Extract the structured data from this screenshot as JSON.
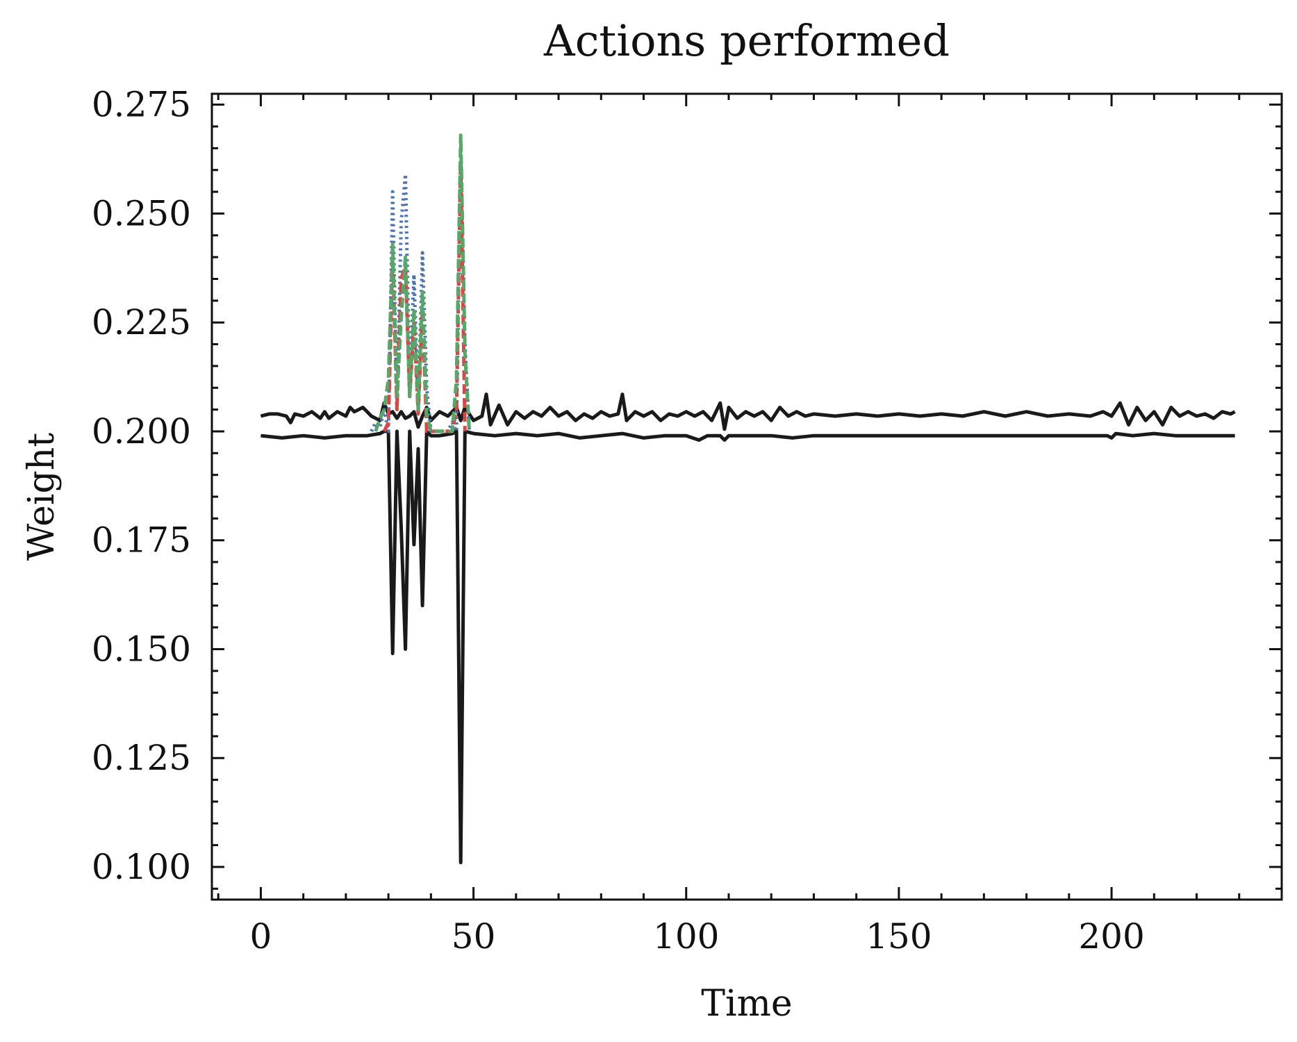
{
  "chart_data": {
    "type": "line",
    "title": "Actions performed",
    "xlabel": "Time",
    "ylabel": "Weight",
    "xlim": [
      -11.5,
      240
    ],
    "ylim": [
      0.0925,
      0.2775
    ],
    "xticks": [
      0,
      50,
      100,
      150,
      200
    ],
    "xtick_labels": [
      "0",
      "50",
      "100",
      "150",
      "200"
    ],
    "yticks": [
      0.1,
      0.125,
      0.15,
      0.175,
      0.2,
      0.225,
      0.25,
      0.275
    ],
    "ytick_labels": [
      "0.100",
      "0.125",
      "0.150",
      "0.175",
      "0.200",
      "0.225",
      "0.250",
      "0.275"
    ],
    "grid": false,
    "legend": "none",
    "series": [
      {
        "color": "#1a1a1a",
        "dash": "solid",
        "x": [
          0,
          2,
          4,
          6,
          7,
          8,
          10,
          12,
          14,
          15,
          16,
          18,
          20,
          21,
          22,
          24,
          26,
          28,
          29,
          30,
          31,
          32,
          33,
          34,
          35,
          36,
          37,
          38,
          39,
          40,
          42,
          44,
          46,
          47,
          48,
          50,
          52,
          53,
          54,
          56,
          58,
          60,
          62,
          64,
          66,
          68,
          70,
          72,
          74,
          76,
          78,
          80,
          82,
          84,
          85,
          86,
          88,
          90,
          92,
          94,
          96,
          98,
          100,
          102,
          104,
          106,
          108,
          109,
          110,
          112,
          114,
          116,
          118,
          120,
          122,
          124,
          126,
          128,
          130,
          135,
          140,
          145,
          150,
          155,
          160,
          165,
          170,
          175,
          180,
          185,
          190,
          195,
          198,
          200,
          202,
          204,
          206,
          208,
          210,
          212,
          214,
          216,
          218,
          220,
          222,
          224,
          226,
          228,
          229
        ],
        "y": [
          0.2035,
          0.204,
          0.204,
          0.2035,
          0.202,
          0.204,
          0.2035,
          0.2045,
          0.203,
          0.2045,
          0.203,
          0.2045,
          0.2035,
          0.2055,
          0.2045,
          0.2055,
          0.2035,
          0.2025,
          0.2065,
          0.204,
          0.2045,
          0.203,
          0.2045,
          0.203,
          0.2035,
          0.2045,
          0.201,
          0.2035,
          0.2055,
          0.2025,
          0.2045,
          0.2035,
          0.2055,
          0.2025,
          0.2055,
          0.2025,
          0.2035,
          0.2085,
          0.2015,
          0.206,
          0.2015,
          0.2045,
          0.203,
          0.2045,
          0.2035,
          0.2055,
          0.2035,
          0.2045,
          0.2025,
          0.204,
          0.203,
          0.2045,
          0.2035,
          0.204,
          0.2085,
          0.2025,
          0.2045,
          0.2035,
          0.2045,
          0.2025,
          0.204,
          0.2035,
          0.2045,
          0.2035,
          0.2045,
          0.2025,
          0.2065,
          0.2005,
          0.2055,
          0.203,
          0.2045,
          0.2035,
          0.2045,
          0.2025,
          0.2055,
          0.2035,
          0.2045,
          0.2035,
          0.204,
          0.2035,
          0.204,
          0.2035,
          0.204,
          0.2035,
          0.204,
          0.2035,
          0.2045,
          0.2035,
          0.2045,
          0.2035,
          0.204,
          0.2035,
          0.2045,
          0.2035,
          0.2065,
          0.2015,
          0.2055,
          0.2025,
          0.2045,
          0.2015,
          0.2055,
          0.2035,
          0.2045,
          0.2035,
          0.204,
          0.203,
          0.2045,
          0.204,
          0.2045
        ]
      },
      {
        "color": "#1a1a1a",
        "dash": "solid",
        "x": [
          0,
          5,
          10,
          15,
          20,
          25,
          28,
          29,
          30,
          31,
          32,
          33,
          34,
          35,
          36,
          37,
          38,
          39,
          40,
          42,
          45,
          46,
          47,
          48,
          50,
          55,
          60,
          65,
          70,
          75,
          80,
          85,
          90,
          95,
          100,
          103,
          105,
          108,
          109,
          110,
          115,
          120,
          125,
          130,
          140,
          150,
          160,
          170,
          180,
          190,
          199,
          200,
          201,
          205,
          210,
          215,
          220,
          225,
          229
        ],
        "y": [
          0.199,
          0.1985,
          0.199,
          0.1985,
          0.199,
          0.199,
          0.1995,
          0.2,
          0.2,
          0.149,
          0.2,
          0.178,
          0.15,
          0.2,
          0.174,
          0.196,
          0.16,
          0.2,
          0.199,
          0.199,
          0.1995,
          0.2,
          0.101,
          0.2,
          0.1995,
          0.199,
          0.1995,
          0.199,
          0.1995,
          0.1985,
          0.199,
          0.1995,
          0.1985,
          0.199,
          0.199,
          0.198,
          0.199,
          0.199,
          0.198,
          0.199,
          0.199,
          0.199,
          0.1985,
          0.199,
          0.199,
          0.199,
          0.199,
          0.199,
          0.199,
          0.199,
          0.199,
          0.1985,
          0.1995,
          0.199,
          0.1995,
          0.199,
          0.199,
          0.199,
          0.199
        ]
      },
      {
        "color": "#4c72b0",
        "dash": "dotted",
        "x": [
          26,
          27,
          28,
          29,
          30,
          31,
          32,
          33,
          34,
          35,
          36,
          37,
          38,
          39,
          40,
          44,
          45,
          46,
          47,
          48,
          49
        ],
        "y": [
          0.2,
          0.202,
          0.201,
          0.205,
          0.2,
          0.255,
          0.205,
          0.248,
          0.259,
          0.21,
          0.236,
          0.205,
          0.241,
          0.21,
          0.2,
          0.2,
          0.202,
          0.2,
          0.265,
          0.22,
          0.2
        ]
      },
      {
        "color": "#dd4444",
        "dash": "dashed",
        "x": [
          29,
          30,
          31,
          32,
          33,
          34,
          35,
          36,
          37,
          38,
          39,
          45,
          46,
          47,
          48
        ],
        "y": [
          0.2,
          0.202,
          0.24,
          0.205,
          0.235,
          0.238,
          0.208,
          0.225,
          0.204,
          0.228,
          0.2,
          0.2,
          0.205,
          0.262,
          0.2
        ]
      },
      {
        "color": "#55a868",
        "dash": "dashed",
        "x": [
          27,
          28,
          29,
          30,
          31,
          32,
          33,
          34,
          35,
          36,
          37,
          38,
          39,
          40,
          45,
          46,
          47,
          48,
          49
        ],
        "y": [
          0.2,
          0.203,
          0.205,
          0.212,
          0.243,
          0.208,
          0.226,
          0.24,
          0.208,
          0.228,
          0.205,
          0.232,
          0.204,
          0.2,
          0.2,
          0.212,
          0.268,
          0.218,
          0.2
        ]
      }
    ]
  }
}
